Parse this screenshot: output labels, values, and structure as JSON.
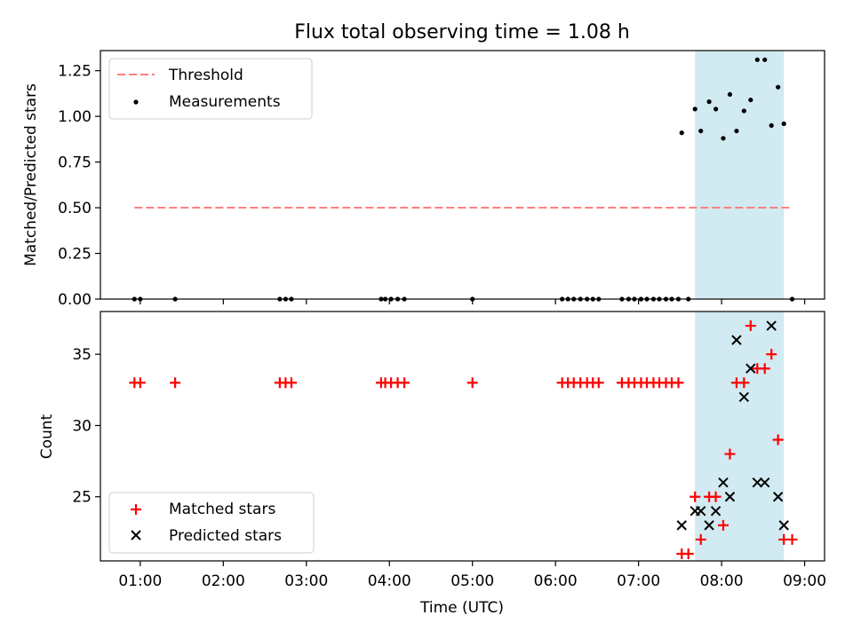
{
  "chart_data": {
    "title": "Flux total observing time = 1.08 h",
    "xlabel": "Time (UTC)",
    "x_unit": "hour of day (UTC), decimal",
    "xlim": [
      0.52,
      9.24
    ],
    "x_ticks": [
      1,
      2,
      3,
      4,
      5,
      6,
      7,
      8,
      9
    ],
    "x_tick_labels": [
      "01:00",
      "02:00",
      "03:00",
      "04:00",
      "05:00",
      "06:00",
      "07:00",
      "08:00",
      "09:00"
    ],
    "shaded_span": {
      "start": 7.68,
      "end": 8.75,
      "color": "#add8e6"
    },
    "panels": [
      {
        "type": "scatter",
        "ylabel": "Matched/Predicted stars",
        "ylim": [
          0,
          1.36
        ],
        "y_ticks": [
          0.0,
          0.25,
          0.5,
          0.75,
          1.0,
          1.25
        ],
        "y_tick_labels": [
          "0.00",
          "0.25",
          "0.50",
          "0.75",
          "1.00",
          "1.25"
        ],
        "legend_position": "upper-left",
        "threshold": {
          "name": "Threshold",
          "value": 0.5,
          "x_start": 0.93,
          "x_end": 8.85,
          "color": "#ff7f7f"
        },
        "series": [
          {
            "name": "Measurements",
            "color": "#000000",
            "marker": "dot",
            "x": [
              0.93,
              1.0,
              1.42,
              2.68,
              2.75,
              2.82,
              3.9,
              3.95,
              4.02,
              4.1,
              4.18,
              5.0,
              6.08,
              6.15,
              6.22,
              6.3,
              6.38,
              6.45,
              6.52,
              6.8,
              6.88,
              6.95,
              7.03,
              7.1,
              7.18,
              7.25,
              7.33,
              7.4,
              7.48,
              7.52,
              7.6,
              7.68,
              7.75,
              7.85,
              7.93,
              8.02,
              8.1,
              8.18,
              8.27,
              8.35,
              8.43,
              8.52,
              8.6,
              8.68,
              8.75,
              8.85
            ],
            "y": [
              0,
              0,
              0,
              0,
              0,
              0,
              0,
              0,
              0,
              0,
              0,
              0,
              0,
              0,
              0,
              0,
              0,
              0,
              0,
              0,
              0,
              0,
              0,
              0,
              0,
              0,
              0,
              0,
              0,
              0.91,
              0,
              1.04,
              0.92,
              1.08,
              1.04,
              0.88,
              1.12,
              0.92,
              1.03,
              1.09,
              1.31,
              1.31,
              0.95,
              1.16,
              0.96,
              0
            ]
          }
        ]
      },
      {
        "type": "scatter",
        "ylabel": "Count",
        "ylim": [
          20.5,
          38.0
        ],
        "y_ticks": [
          25,
          30,
          35
        ],
        "y_tick_labels": [
          "25",
          "30",
          "35"
        ],
        "legend_position": "lower-left",
        "series": [
          {
            "name": "Matched stars",
            "color": "#ff0000",
            "marker": "plus",
            "x": [
              0.93,
              1.0,
              1.42,
              2.68,
              2.75,
              2.82,
              3.9,
              3.95,
              4.02,
              4.1,
              4.18,
              5.0,
              6.08,
              6.15,
              6.22,
              6.3,
              6.38,
              6.45,
              6.52,
              6.8,
              6.88,
              6.95,
              7.03,
              7.1,
              7.18,
              7.25,
              7.33,
              7.4,
              7.48,
              7.52,
              7.6,
              7.68,
              7.75,
              7.85,
              7.93,
              8.02,
              8.1,
              8.18,
              8.27,
              8.35,
              8.43,
              8.52,
              8.6,
              8.68,
              8.75,
              8.85
            ],
            "y": [
              33,
              33,
              33,
              33,
              33,
              33,
              33,
              33,
              33,
              33,
              33,
              33,
              33,
              33,
              33,
              33,
              33,
              33,
              33,
              33,
              33,
              33,
              33,
              33,
              33,
              33,
              33,
              33,
              33,
              21,
              21,
              25,
              22,
              25,
              25,
              23,
              28,
              33,
              33,
              37,
              34,
              34,
              35,
              29,
              22,
              22
            ]
          },
          {
            "name": "Predicted stars",
            "color": "#000000",
            "marker": "x",
            "x": [
              7.52,
              7.68,
              7.75,
              7.85,
              7.93,
              8.02,
              8.1,
              8.18,
              8.27,
              8.35,
              8.43,
              8.52,
              8.6,
              8.68,
              8.75
            ],
            "y": [
              23,
              24,
              24,
              23,
              24,
              26,
              25,
              36,
              32,
              34,
              26,
              26,
              37,
              25,
              23
            ]
          }
        ]
      }
    ]
  }
}
